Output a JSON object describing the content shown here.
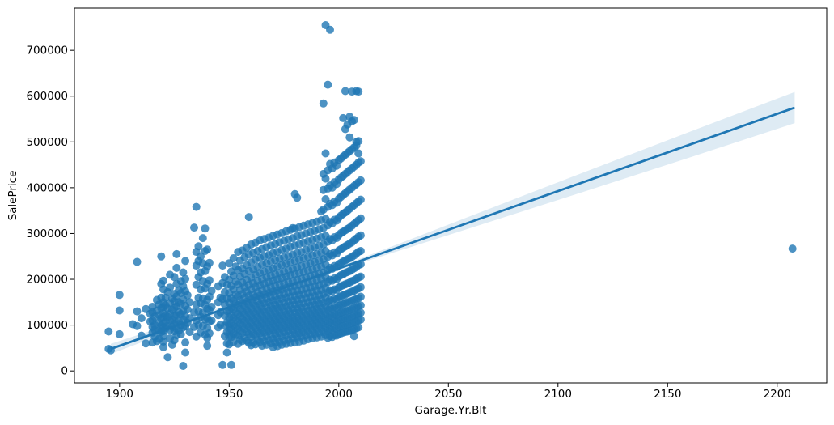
{
  "figure": {
    "background": "#ffffff"
  },
  "chart_data": {
    "type": "scatter",
    "title": "",
    "xlabel": "Garage.Yr.Blt",
    "ylabel": "SalePrice",
    "xlim": [
      1879.4,
      2222.6
    ],
    "ylim": [
      -26200,
      792200
    ],
    "xticks": [
      1900,
      1950,
      2000,
      2050,
      2100,
      2150,
      2200
    ],
    "yticks": [
      0,
      100000,
      200000,
      300000,
      400000,
      500000,
      600000,
      700000
    ],
    "grid": false,
    "legend": null,
    "marker_color": "#1f77b4",
    "marker_alpha": 0.8,
    "marker_radius": 5,
    "line_color": "#1f77b4",
    "line_width": 2.8,
    "band_color": "#1f77b4",
    "band_alpha": 0.15,
    "axis_color": "#000000",
    "regression_line": {
      "x": [
        1896,
        2208
      ],
      "y": [
        48000,
        575000
      ]
    },
    "confidence_band": {
      "x": [
        1896,
        1930,
        1960,
        1990,
        2010,
        2060,
        2110,
        2160,
        2208
      ],
      "upper": [
        59000,
        112400,
        161100,
        210800,
        245500,
        338000,
        430400,
        521900,
        609000
      ],
      "lower": [
        37000,
        98400,
        151100,
        202800,
        235500,
        312000,
        388400,
        465900,
        541000
      ]
    },
    "points_by_year": {
      "1895": [
        86000,
        48000
      ],
      "1896": [
        45000
      ],
      "1900": [
        166000,
        132000,
        80000
      ],
      "1906": [
        102000
      ],
      "1908": [
        238000,
        130000,
        98000
      ],
      "1910": [
        115000,
        77000
      ],
      "1912": [
        135000,
        60000
      ],
      "1914": [
        125000,
        108000
      ],
      "1915": [
        140000,
        128000,
        110000,
        96000,
        84000,
        62000
      ],
      "1916": [
        118000,
        100000,
        90000,
        75000
      ],
      "1917": [
        155000,
        132000,
        65000
      ],
      "1918": [
        145000,
        122000,
        105000,
        88000,
        70000
      ],
      "1919": [
        250000,
        190000,
        160000,
        137000,
        115000,
        99000,
        85000
      ],
      "1920": [
        197000,
        178000,
        150000,
        139000,
        126000,
        117000,
        104000,
        95000,
        87000,
        76000,
        64000,
        52000
      ],
      "1921": [
        160000,
        143000,
        121000,
        107000,
        93000
      ],
      "1922": [
        172000,
        136000,
        118000,
        98000,
        30000
      ],
      "1923": [
        210000,
        182000,
        148000,
        125000,
        110000,
        90000,
        71000
      ],
      "1924": [
        158000,
        133000,
        112000,
        96000,
        57000
      ],
      "1925": [
        205000,
        168000,
        152000,
        138000,
        120000,
        103000,
        86000,
        67000
      ],
      "1926": [
        255000,
        225000,
        190000,
        163000,
        141000,
        122000,
        105000,
        92000,
        78000
      ],
      "1927": [
        176000,
        150000,
        128000,
        109000,
        88000
      ],
      "1928": [
        196000,
        170000,
        147000,
        124000,
        100000,
        80000
      ],
      "1929": [
        215000,
        185000,
        156000,
        131000,
        113000,
        95000,
        11000
      ],
      "1930": [
        240000,
        201000,
        174000,
        142000,
        119000,
        97000,
        62000,
        40000
      ],
      "1931": [
        165000,
        134000,
        105000
      ],
      "1932": [
        150000,
        115000,
        85000
      ],
      "1934": [
        313000,
        128000,
        96000
      ],
      "1935": [
        358000,
        260000,
        230000,
        188000,
        145000,
        110000,
        75000
      ],
      "1936": [
        272000,
        240000,
        205000,
        160000,
        130000,
        100000
      ],
      "1937": [
        250000,
        215000,
        178000,
        148000,
        118000,
        84000
      ],
      "1938": [
        290000,
        235000,
        196000,
        158000,
        127000,
        98000
      ],
      "1939": [
        311000,
        262000,
        218000,
        180000,
        144000,
        112000,
        79000
      ],
      "1940": [
        265000,
        228000,
        190000,
        155000,
        135000,
        116000,
        94000,
        72000,
        55000
      ],
      "1941": [
        236000,
        198000,
        162000,
        133000,
        108000,
        82000
      ],
      "1942": [
        175000,
        140000,
        110000
      ],
      "1945": [
        185000,
        150000,
        122000,
        95000
      ],
      "1946": [
        160000,
        128000,
        101000
      ],
      "1947": [
        230000,
        192000,
        157000,
        13000
      ],
      "1948": [
        205000,
        172000,
        145000,
        121000,
        99000,
        76000
      ],
      "1949": [
        188000,
        158000,
        131000,
        106000,
        85000,
        60000,
        40000
      ],
      "1950": [
        235000,
        199000,
        170000,
        149000,
        132000,
        117000,
        102000,
        89000,
        75000,
        58000
      ],
      "1951": [
        217000,
        186000,
        159000,
        138000,
        120000,
        104000,
        90000,
        74000,
        13000
      ],
      "1952": [
        246000,
        208000,
        178000,
        153000,
        134000,
        116000,
        98000,
        81000,
        63000
      ],
      "1953": [
        228000,
        195000,
        167000,
        146000,
        128000,
        111000,
        95000,
        79000
      ],
      "1954": [
        260000,
        220000,
        189000,
        163000,
        143000,
        125000,
        109000,
        93000,
        77000,
        59000
      ],
      "1955": [
        241000,
        206000,
        177000,
        154000,
        135000,
        119000,
        103000,
        87000,
        68000
      ],
      "1956": [
        263000,
        224000,
        193000,
        168000,
        147000,
        130000,
        114000,
        99000,
        83000,
        65000
      ],
      "1957": [
        248000,
        212000,
        183000,
        160000,
        141000,
        124000,
        108000,
        92000,
        73000
      ],
      "1958": [
        269000,
        231000,
        199000,
        173000,
        151000,
        133000,
        117000,
        101000,
        85000,
        66000
      ],
      "1959": [
        336000,
        254000,
        218000,
        188000,
        164000,
        144000,
        127000,
        111000,
        96000,
        80000,
        61000
      ],
      "1960": [
        276000,
        237000,
        204000,
        178000,
        156000,
        137000,
        120000,
        105000,
        90000,
        74000,
        56000
      ],
      "1961": [
        258000,
        222000,
        192000,
        167000,
        147000,
        129000,
        113000,
        97000,
        81000,
        62000
      ],
      "1962": [
        280000,
        243000,
        210000,
        183000,
        161000,
        142000,
        125000,
        109000,
        94000,
        78000,
        58000
      ],
      "1963": [
        262000,
        227000,
        197000,
        172000,
        151000,
        133000,
        117000,
        102000,
        86000,
        68000
      ],
      "1964": [
        285000,
        247000,
        214000,
        187000,
        164000,
        145000,
        128000,
        112000,
        97000,
        82000,
        63000
      ],
      "1965": [
        266000,
        232000,
        201000,
        176000,
        155000,
        136000,
        120000,
        104000,
        89000,
        73000,
        55000
      ],
      "1966": [
        288000,
        250000,
        217000,
        190000,
        167000,
        148000,
        130000,
        114000,
        99000,
        84000,
        65000
      ],
      "1967": [
        270000,
        235000,
        205000,
        180000,
        158000,
        139000,
        122000,
        107000,
        92000,
        76000,
        57000
      ],
      "1968": [
        291000,
        253000,
        221000,
        194000,
        170000,
        150000,
        132000,
        116000,
        101000,
        86000,
        67000
      ],
      "1969": [
        274000,
        239000,
        208000,
        183000,
        161000,
        142000,
        125000,
        109000,
        94000,
        79000,
        60000
      ],
      "1970": [
        295000,
        257000,
        224000,
        197000,
        173000,
        153000,
        135000,
        118000,
        103000,
        88000,
        70000,
        52000
      ],
      "1971": [
        277000,
        242000,
        211000,
        186000,
        163000,
        144000,
        127000,
        111000,
        96000,
        81000,
        62000
      ],
      "1972": [
        298000,
        260000,
        228000,
        200000,
        176000,
        155000,
        137000,
        120000,
        105000,
        90000,
        72000,
        54000
      ],
      "1973": [
        281000,
        245000,
        214000,
        189000,
        166000,
        146000,
        129000,
        113000,
        98000,
        83000,
        64000
      ],
      "1974": [
        301000,
        264000,
        231000,
        203000,
        178000,
        158000,
        139000,
        122000,
        107000,
        92000,
        75000,
        57000
      ],
      "1975": [
        284000,
        248000,
        217000,
        191000,
        168000,
        149000,
        131000,
        115000,
        100000,
        85000,
        66000
      ],
      "1976": [
        305000,
        267000,
        234000,
        206000,
        181000,
        160000,
        141000,
        124000,
        109000,
        94000,
        77000,
        59000
      ],
      "1977": [
        287000,
        251000,
        220000,
        194000,
        171000,
        151000,
        133000,
        117000,
        102000,
        87000,
        68000
      ],
      "1978": [
        308000,
        271000,
        237000,
        209000,
        184000,
        162000,
        143000,
        126000,
        110000,
        95000,
        79000,
        61000
      ],
      "1979": [
        312000,
        290000,
        254000,
        223000,
        196000,
        173000,
        153000,
        135000,
        118000,
        103000,
        88000,
        71000
      ],
      "1980": [
        386000,
        311000,
        274000,
        240000,
        211000,
        186000,
        164000,
        145000,
        127000,
        111000,
        96000,
        80000,
        62000
      ],
      "1981": [
        378000,
        294000,
        257000,
        226000,
        199000,
        175000,
        155000,
        136000,
        119000,
        104000,
        89000,
        73000
      ],
      "1982": [
        314000,
        277000,
        243000,
        214000,
        188000,
        166000,
        146000,
        128000,
        112000,
        97000,
        82000,
        64000
      ],
      "1983": [
        297000,
        260000,
        229000,
        201000,
        177000,
        157000,
        138000,
        121000,
        106000,
        91000,
        75000
      ],
      "1984": [
        317000,
        280000,
        246000,
        216000,
        190000,
        168000,
        148000,
        130000,
        114000,
        99000,
        84000,
        66000
      ],
      "1985": [
        300000,
        264000,
        232000,
        204000,
        180000,
        159000,
        140000,
        123000,
        108000,
        93000,
        77000
      ],
      "1986": [
        320000,
        283000,
        249000,
        219000,
        193000,
        170000,
        150000,
        132000,
        116000,
        101000,
        86000,
        69000
      ],
      "1987": [
        303000,
        267000,
        235000,
        207000,
        182000,
        161000,
        142000,
        125000,
        110000,
        95000,
        79000
      ],
      "1988": [
        323000,
        286000,
        252000,
        222000,
        196000,
        172000,
        152000,
        134000,
        118000,
        103000,
        88000,
        71000
      ],
      "1989": [
        306000,
        270000,
        238000,
        210000,
        185000,
        163000,
        144000,
        127000,
        112000,
        97000,
        81000
      ],
      "1990": [
        326000,
        289000,
        255000,
        225000,
        198000,
        175000,
        154000,
        136000,
        120000,
        105000,
        90000,
        73000
      ],
      "1991": [
        309000,
        273000,
        241000,
        212000,
        187000,
        165000,
        146000,
        129000,
        114000,
        99000,
        83000
      ],
      "1992": [
        348000,
        329000,
        292000,
        258000,
        228000,
        201000,
        177000,
        156000,
        138000,
        122000,
        107000,
        92000,
        75000
      ],
      "1993": [
        584000,
        430000,
        395000,
        352000,
        312000,
        276000,
        244000,
        215000,
        190000,
        168000,
        148000,
        131000,
        115000,
        100000,
        85000
      ],
      "1994": [
        755000,
        475000,
        420000,
        375000,
        332000,
        295000,
        262000,
        232000,
        205000,
        181000,
        160000,
        141000,
        124000,
        109000,
        94000,
        78000
      ],
      "1995": [
        625000,
        438000,
        398000,
        358000,
        318000,
        282000,
        249000,
        220000,
        194000,
        171000,
        151000,
        133000,
        117000,
        102000,
        87000,
        72000
      ],
      "1996": [
        745000,
        452000,
        405000,
        365000,
        325000,
        288000,
        255000,
        225000,
        199000,
        176000,
        155000,
        137000,
        121000,
        106000,
        91000,
        76000
      ],
      "1997": [
        442000,
        400000,
        362000,
        322000,
        285000,
        252000,
        223000,
        197000,
        174000,
        153000,
        135000,
        119000,
        104000,
        89000,
        74000
      ],
      "1998": [
        455000,
        412000,
        370000,
        330000,
        292000,
        259000,
        229000,
        202000,
        178000,
        158000,
        139000,
        123000,
        108000,
        93000,
        78000
      ],
      "1999": [
        448000,
        408000,
        367000,
        328000,
        290000,
        256000,
        227000,
        200000,
        177000,
        156000,
        138000,
        122000,
        107000,
        92000,
        77000
      ],
      "2000": [
        460000,
        418000,
        376000,
        335000,
        297000,
        263000,
        233000,
        206000,
        182000,
        161000,
        142000,
        125000,
        110000,
        95000,
        80000
      ],
      "2001": [
        464000,
        422000,
        380000,
        339000,
        301000,
        266000,
        236000,
        209000,
        185000,
        163000,
        144000,
        127000,
        112000,
        97000,
        82000
      ],
      "2002": [
        552000,
        468000,
        426000,
        384000,
        343000,
        304000,
        269000,
        239000,
        211000,
        187000,
        165000,
        146000,
        129000,
        113000,
        98000,
        84000
      ],
      "2003": [
        611000,
        528000,
        472000,
        430000,
        388000,
        346000,
        307000,
        272000,
        241000,
        214000,
        189000,
        167000,
        148000,
        130000,
        115000,
        100000,
        85000
      ],
      "2004": [
        538000,
        476000,
        434000,
        392000,
        350000,
        310000,
        275000,
        244000,
        216000,
        191000,
        169000,
        150000,
        132000,
        116000,
        101000,
        86000
      ],
      "2005": [
        555000,
        510000,
        480000,
        438000,
        396000,
        354000,
        313000,
        278000,
        246000,
        218000,
        193000,
        171000,
        151000,
        133000,
        117000,
        102000,
        87000
      ],
      "2006": [
        610000,
        545000,
        484000,
        442000,
        400000,
        358000,
        317000,
        281000,
        249000,
        221000,
        196000,
        173000,
        153000,
        135000,
        119000,
        104000,
        89000
      ],
      "2007": [
        548000,
        488000,
        446000,
        404000,
        362000,
        321000,
        285000,
        252000,
        224000,
        198000,
        175000,
        155000,
        137000,
        121000,
        106000,
        91000,
        76000
      ],
      "2008": [
        611000,
        500000,
        492000,
        450000,
        408000,
        366000,
        325000,
        289000,
        256000,
        227000,
        201000,
        178000,
        157000,
        139000,
        123000,
        108000,
        93000
      ],
      "2009": [
        610000,
        502000,
        475000,
        455000,
        412000,
        370000,
        329000,
        293000,
        260000,
        231000,
        204000,
        180000,
        159000,
        141000,
        125000,
        110000,
        95000
      ],
      "2010": [
        458000,
        416000,
        374000,
        333000,
        296000,
        262000,
        233000,
        206000,
        183000,
        162000,
        143000,
        127000,
        112000
      ],
      "2207": [
        267000
      ]
    }
  }
}
